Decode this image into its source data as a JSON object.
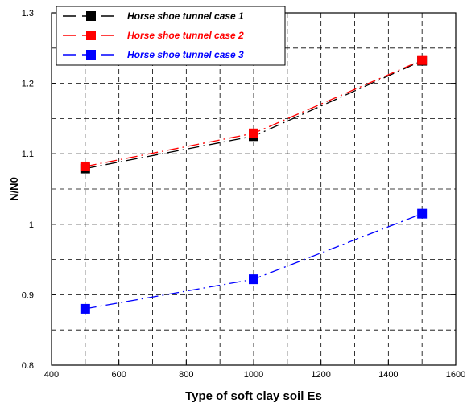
{
  "chart_data": {
    "type": "line",
    "title": "",
    "xlabel": "Type of soft clay soil Es",
    "ylabel": "N/N0",
    "xlim": [
      400,
      1600
    ],
    "ylim": [
      0.8,
      1.3
    ],
    "x_ticks": [
      400,
      600,
      800,
      1000,
      1200,
      1400,
      1600
    ],
    "y_ticks": [
      0.8,
      0.9,
      1,
      1.1,
      1.2,
      1.3
    ],
    "x_tick_labels": [
      "400",
      "600",
      "800",
      "1000",
      "1200",
      "1400",
      "1600"
    ],
    "y_tick_labels": [
      "0.8",
      "0.9",
      "1",
      "1.1",
      "1.2",
      "1.3"
    ],
    "grid": true,
    "legend_position": "top-left",
    "x": [
      500,
      1000,
      1500
    ],
    "series": [
      {
        "name": "Horse shoe tunnel case 1",
        "values": [
          1.079,
          1.125,
          1.232
        ],
        "color": "#000000",
        "line_style": "dash-dot",
        "marker": "square"
      },
      {
        "name": "Horse shoe tunnel case 2",
        "values": [
          1.082,
          1.129,
          1.233
        ],
        "color": "#ff0000",
        "line_style": "dash-dot",
        "marker": "square"
      },
      {
        "name": "Horse shoe tunnel case 3",
        "values": [
          0.88,
          0.922,
          1.015
        ],
        "color": "#0000ff",
        "line_style": "dash-dot",
        "marker": "square"
      }
    ]
  }
}
